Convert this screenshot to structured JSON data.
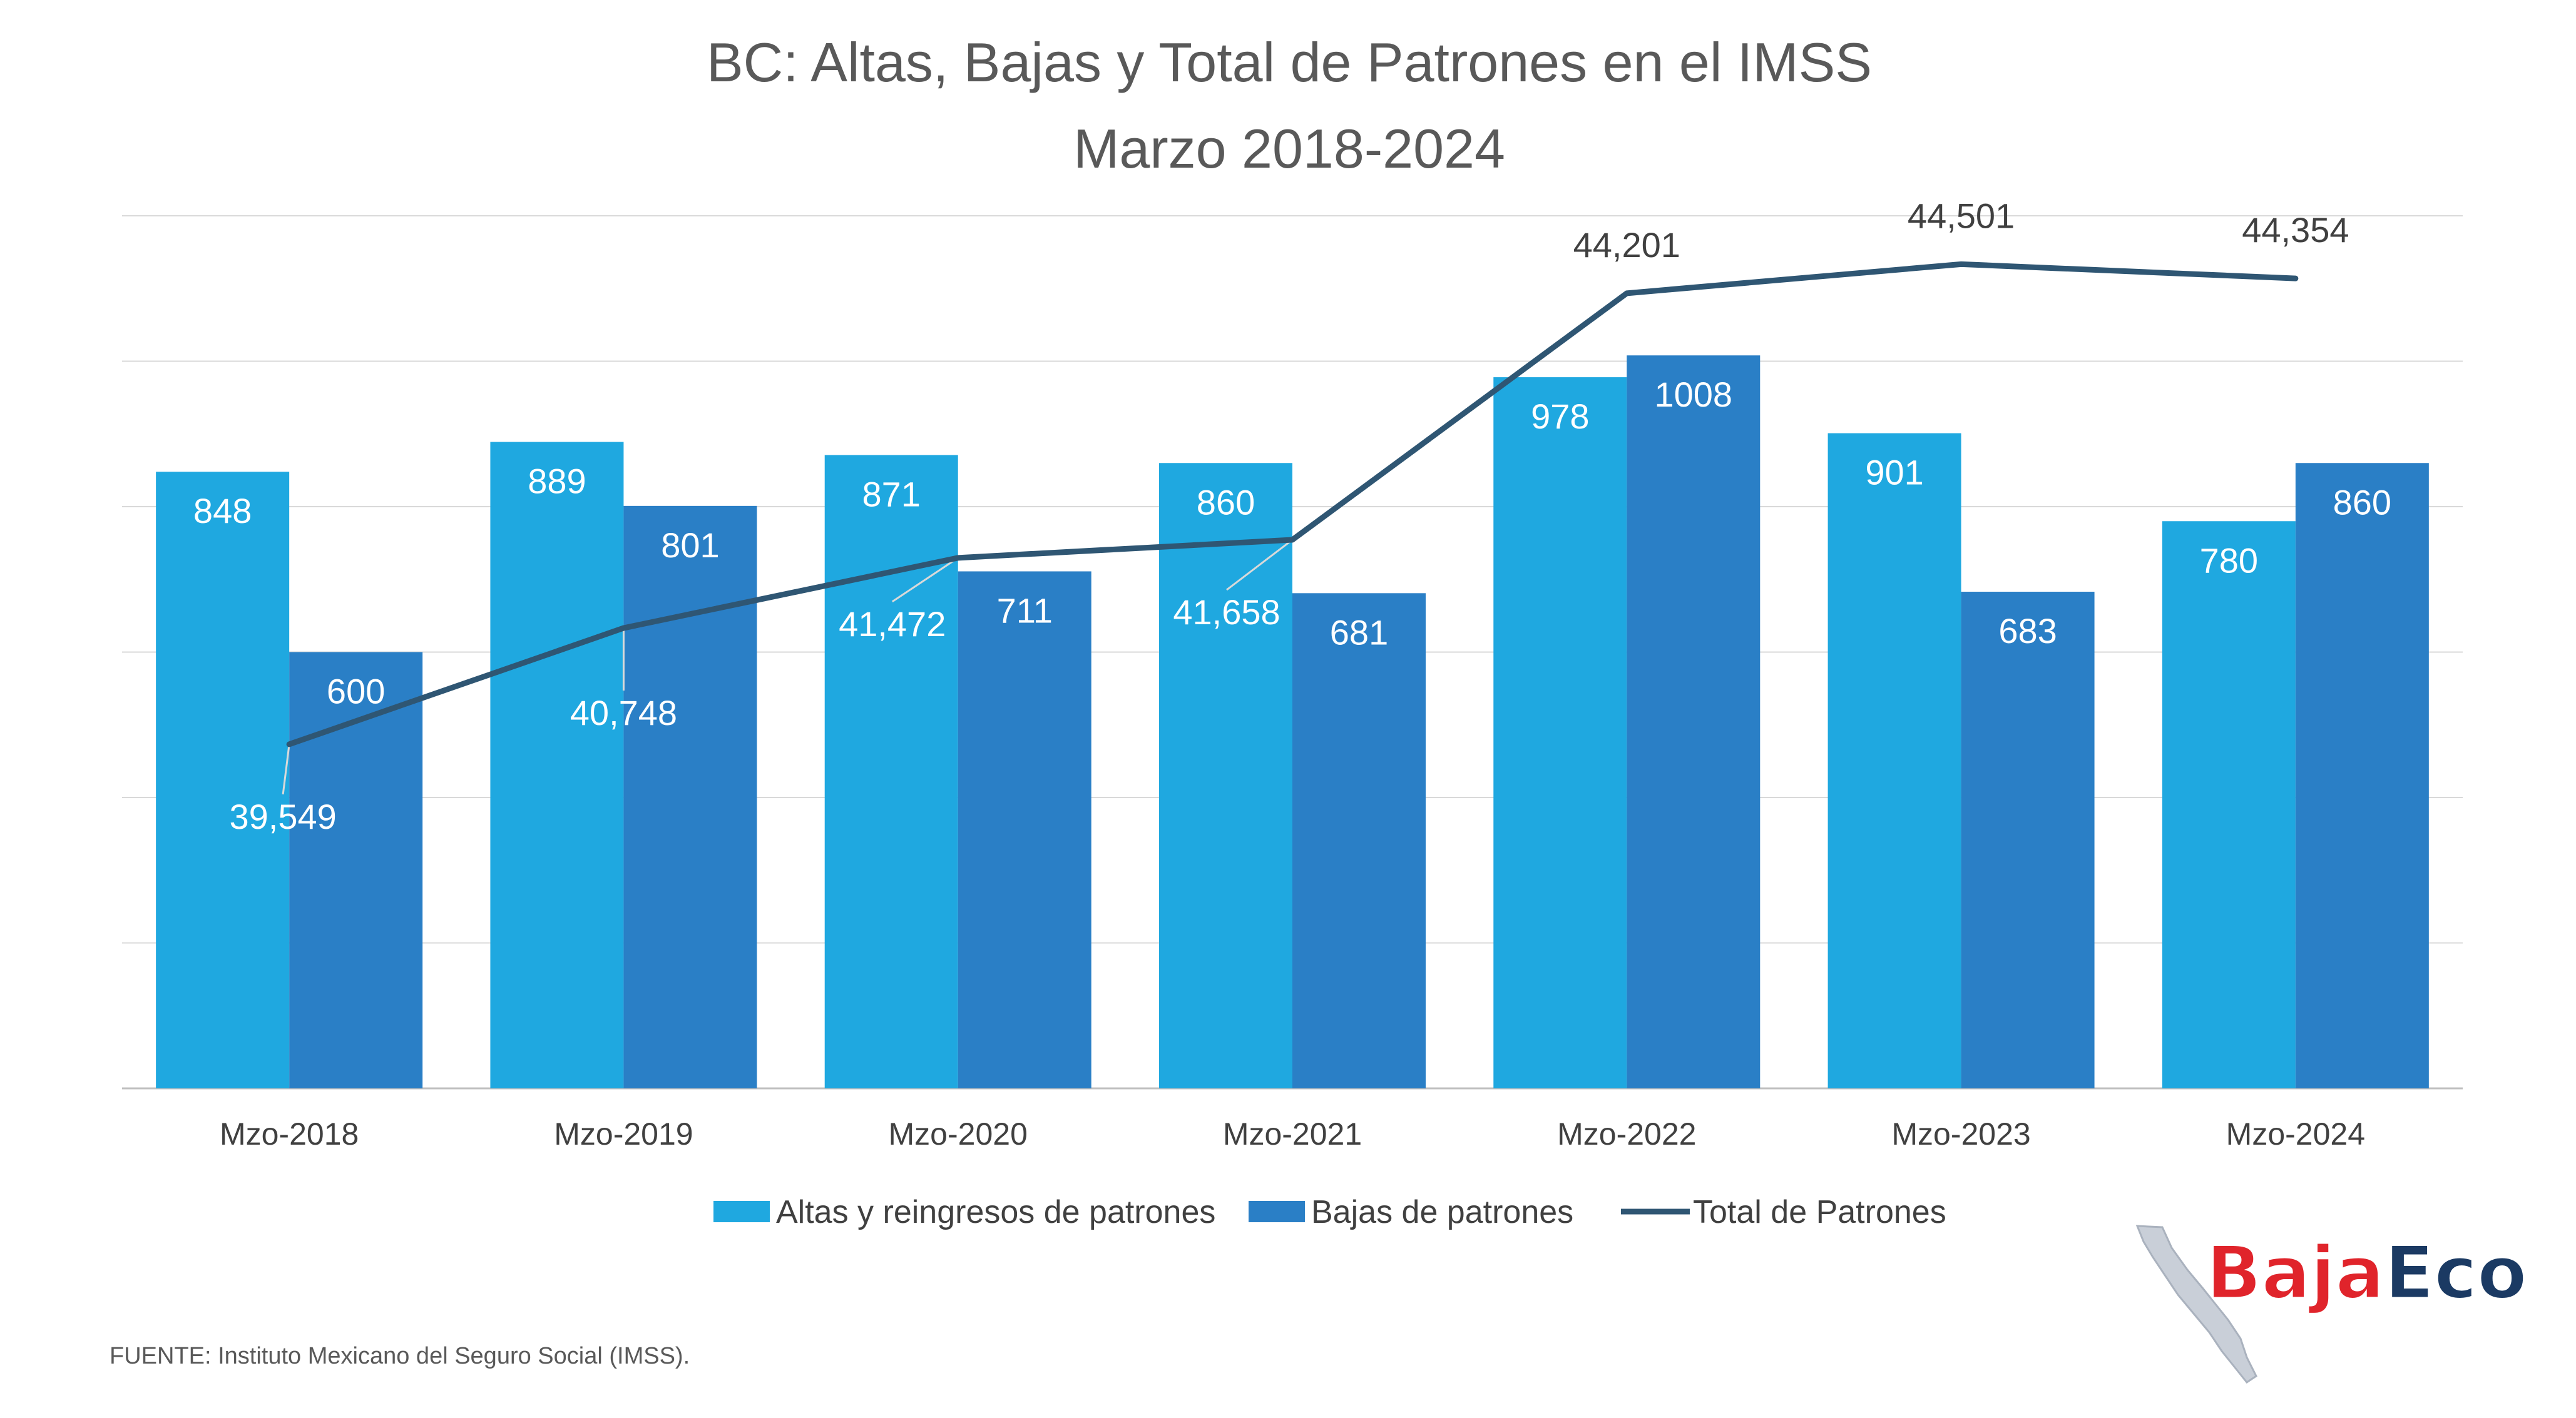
{
  "chart_data": {
    "type": "bar",
    "title": "BC: Altas, Bajas y Total de Patrones en el IMSS",
    "subtitle": "Marzo 2018-2024",
    "categories": [
      "Mzo-2018",
      "Mzo-2019",
      "Mzo-2020",
      "Mzo-2021",
      "Mzo-2022",
      "Mzo-2023",
      "Mzo-2024"
    ],
    "series": [
      {
        "name": "Altas y reingresos de patrones",
        "kind": "bar",
        "color": "#1fa8e0",
        "values": [
          848,
          889,
          871,
          860,
          978,
          901,
          780
        ],
        "labels": [
          "848",
          "889",
          "871",
          "860",
          "978",
          "901",
          "780"
        ]
      },
      {
        "name": "Bajas de patrones",
        "kind": "bar",
        "color": "#2a7fc6",
        "values": [
          600,
          801,
          711,
          681,
          1008,
          683,
          860
        ],
        "labels": [
          "600",
          "801",
          "711",
          "681",
          "1008",
          "683",
          "860"
        ]
      },
      {
        "name": "Total de Patrones",
        "kind": "line",
        "color": "#2f5673",
        "values": [
          39549,
          40748,
          41472,
          41658,
          44201,
          44501,
          44354
        ],
        "labels": [
          "39,549",
          "40,748",
          "41,472",
          "41,658",
          "44,201",
          "44,501",
          "44,354"
        ]
      }
    ],
    "bar_axis": {
      "ylim": [
        0,
        1200
      ]
    },
    "line_axis": {
      "ylim": [
        36000,
        45000
      ]
    },
    "grid": true,
    "legend_position": "bottom"
  },
  "footer": {
    "source": "FUENTE: Instituto Mexicano del Seguro Social (IMSS)."
  },
  "logo": {
    "part1": "Baja",
    "part2": "Eco",
    "colors": {
      "baja": "#e0242b",
      "eco": "#1b3a63"
    }
  }
}
